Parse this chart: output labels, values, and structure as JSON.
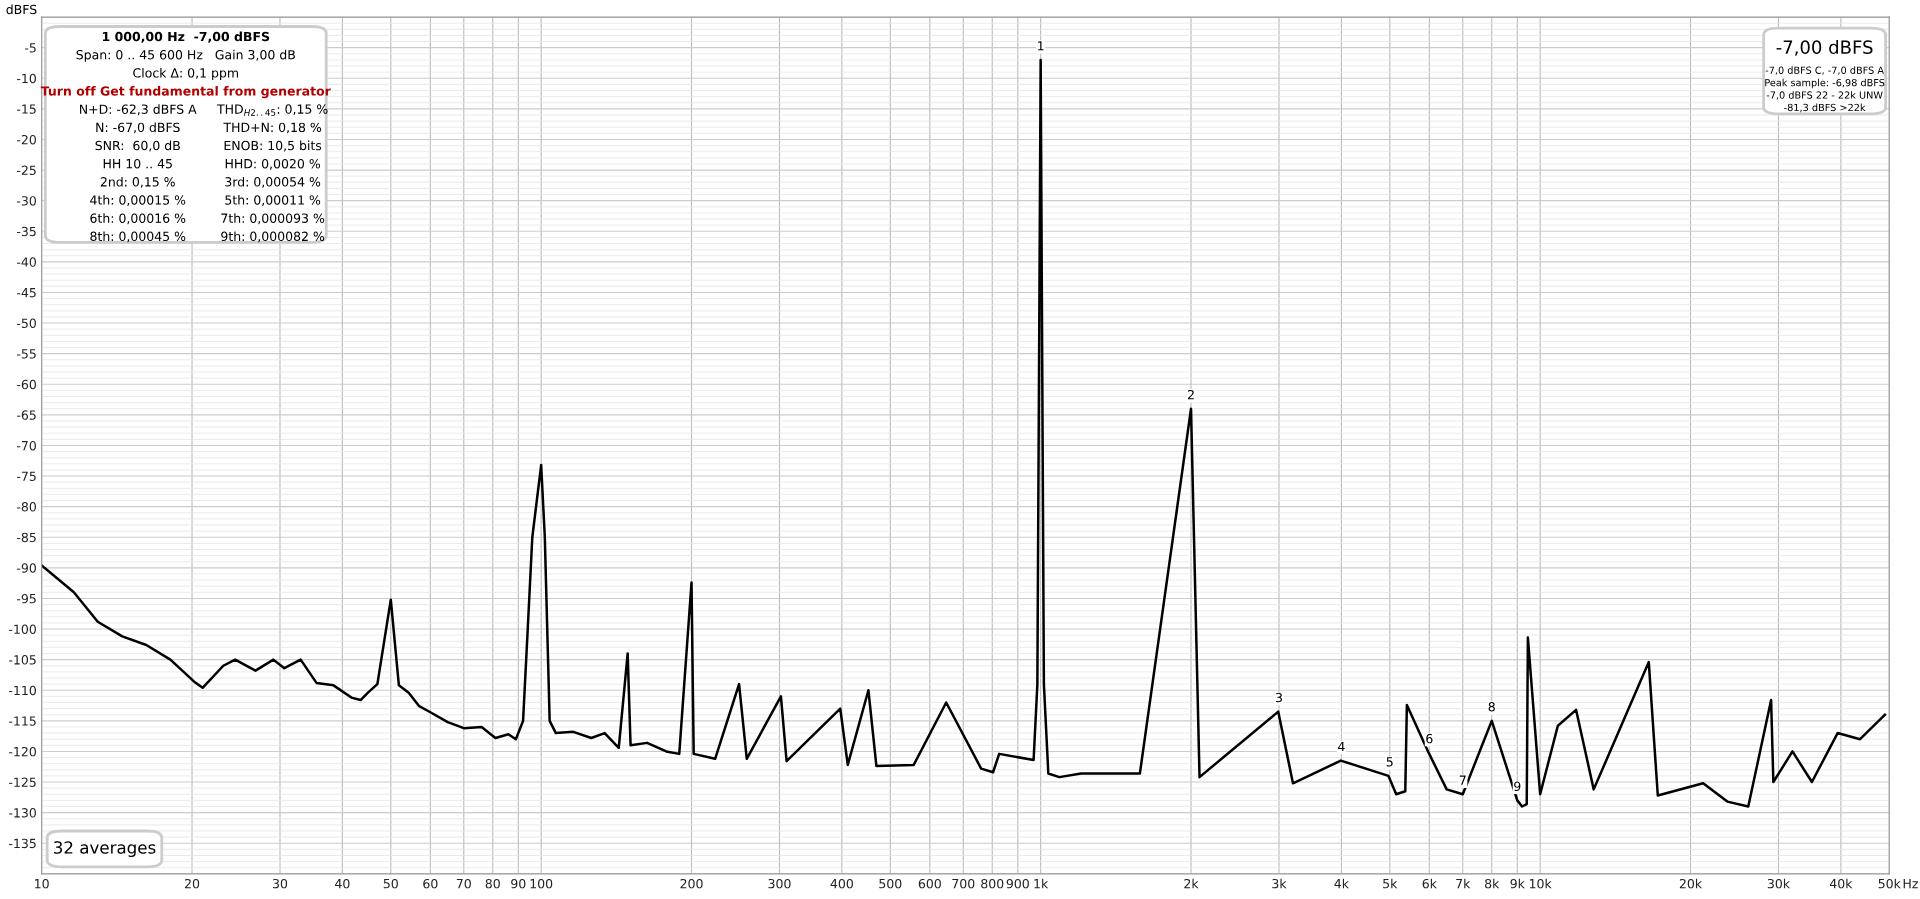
{
  "chart_data": {
    "type": "line",
    "ylabel": "dBFS",
    "x": [
      10,
      11.6,
      12.95,
      14.5,
      16.2,
      18.1,
      20.2,
      21,
      23.1,
      24.4,
      26.8,
      29.1,
      30.6,
      33,
      35.5,
      38.4,
      41.7,
      43.5,
      45,
      47,
      50,
      51.9,
      54.3,
      57,
      60,
      65,
      70,
      76,
      81,
      86,
      89,
      92,
      94,
      96,
      100,
      101.7,
      104,
      107,
      116,
      126,
      134,
      143,
      149,
      151,
      163,
      178,
      189,
      200,
      202,
      223,
      249,
      258,
      302,
      310,
      397,
      411,
      452,
      469,
      557,
      647,
      760,
      803,
      826,
      968,
      985,
      1000,
      1015,
      1036,
      1090,
      1205,
      1580,
      2000,
      2080,
      2990,
      3200,
      3990,
      4970,
      5150,
      5370,
      5410,
      5980,
      6500,
      7000,
      7600,
      8000,
      9000,
      9200,
      9400,
      9450,
      10000,
      10850,
      11800,
      12800,
      16500,
      17200,
      21200,
      23700,
      26100,
      29000,
      29300,
      32000,
      35000,
      39400,
      43700,
      49000
    ],
    "series": [
      {
        "color": "#000000",
        "values": [
          -89.6,
          -94,
          -98.8,
          -101.2,
          -102.6,
          -105,
          -108.6,
          -109.6,
          -106,
          -105,
          -106.8,
          -105,
          -106.4,
          -105,
          -108.8,
          -109.2,
          -111.2,
          -111.6,
          -110.4,
          -109,
          -95.2,
          -109.2,
          -110.4,
          -112.6,
          -113.6,
          -115.2,
          -116.2,
          -116,
          -117.8,
          -117.2,
          -118,
          -115,
          -100,
          -85,
          -73.2,
          -85,
          -115,
          -117,
          -116.8,
          -117.8,
          -117,
          -119.4,
          -104,
          -119,
          -118.6,
          -120,
          -120.4,
          -92.4,
          -120.4,
          -121.2,
          -109,
          -121.2,
          -111,
          -121.6,
          -113,
          -122.2,
          -110,
          -122.4,
          -122.2,
          -112,
          -122.8,
          -123.4,
          -120.4,
          -121.4,
          -109,
          -7,
          -109,
          -123.6,
          -124.2,
          -123.6,
          -123.6,
          -64,
          -124.2,
          -113.5,
          -125.2,
          -121.5,
          -124,
          -127,
          -126.5,
          -112.4,
          -120.2,
          -126.2,
          -127,
          -119.6,
          -115,
          -128,
          -129,
          -128.6,
          -101.4,
          -127,
          -115.8,
          -113.2,
          -126.2,
          -105.4,
          -127.2,
          -125.2,
          -128.2,
          -129,
          -111.6,
          -125,
          -120,
          -125,
          -117,
          -118,
          -114
        ]
      }
    ],
    "xlim": [
      10,
      50000
    ],
    "ylim": [
      -140,
      0
    ],
    "log": "x",
    "xticks": [
      10,
      20,
      30,
      40,
      50,
      60,
      70,
      80,
      90,
      100,
      200,
      300,
      400,
      500,
      600,
      700,
      800,
      900,
      {
        "value": 1000,
        "label": "1k"
      },
      {
        "value": 2000,
        "label": "2k"
      },
      {
        "value": 3000,
        "label": "3k"
      },
      {
        "value": 4000,
        "label": "4k"
      },
      {
        "value": 5000,
        "label": "5k"
      },
      {
        "value": 6000,
        "label": "6k"
      },
      {
        "value": 7000,
        "label": "7k"
      },
      {
        "value": 8000,
        "label": "8k"
      },
      {
        "value": 9000,
        "label": "9k"
      },
      {
        "value": 10000,
        "label": "10k"
      },
      {
        "value": 20000,
        "label": "20k"
      },
      {
        "value": 30000,
        "label": "30k"
      },
      {
        "value": 40000,
        "label": "40k"
      },
      {
        "value": 50000,
        "label": "50k"
      }
    ],
    "xlabel": "Hz",
    "yticks": [
      {
        "value": 0,
        "label": null
      },
      -5,
      -10,
      -15,
      -20,
      -25,
      -30,
      -35,
      -40,
      -45,
      -50,
      -55,
      -60,
      -65,
      -70,
      -75,
      -80,
      -85,
      -90,
      -95,
      -100,
      -105,
      -110,
      -115,
      -120,
      -125,
      -130,
      -135,
      {
        "value": -140,
        "label": null
      }
    ],
    "grid": true,
    "line_style": "solid",
    "marker": "none",
    "annotations": [
      {
        "text": "1",
        "x": 1000,
        "y": -7
      },
      {
        "text": "2",
        "x": 2000,
        "y": -64
      },
      {
        "text": "3",
        "x": 3000,
        "y": -113.5
      },
      {
        "text": "4",
        "x": 4000,
        "y": -121.5
      },
      {
        "text": "5",
        "x": 5000,
        "y": -124
      },
      {
        "text": "6",
        "x": 6000,
        "y": -120.2
      },
      {
        "text": "7",
        "x": 7000,
        "y": -127
      },
      {
        "text": "8",
        "x": 8000,
        "y": -115
      },
      {
        "text": "9",
        "x": 9000,
        "y": -128
      },
      "1 000,00 Hz  -7,00 dBFS",
      "Span: 0 .. 45 600 Hz   Gain 3,00 dB",
      "Clock Δ: 0,1 ppm",
      "Turn off Get fundamental from generator",
      "N+D: -62,3 dBFS A",
      "THD$_{H2..45}$: 0,15 %",
      "N: -67,0 dBFS",
      "THD+N: 0,18 %",
      "SNR:  60,0 dB",
      "ENOB: 10,5 bits",
      "HH 10 .. 45",
      "HHD: 0,0020 %",
      "2nd: 0,15 %",
      "3rd: 0,00054 %",
      "4th: 0,00015 %",
      "5th: 0,00011 %",
      "6th: 0,00016 %",
      "7th: 0,000093 %",
      "8th: 0,00045 %",
      "9th: 0,000082 %",
      "-7,00 dBFS",
      "-7,0 dBFS C, -7,0 dBFS A",
      "Peak sample: -6,98 dBFS",
      "-7,0 dBFS 22 - 22k UNW",
      "-81,3 dBFS >22k",
      "32 averages"
    ]
  }
}
